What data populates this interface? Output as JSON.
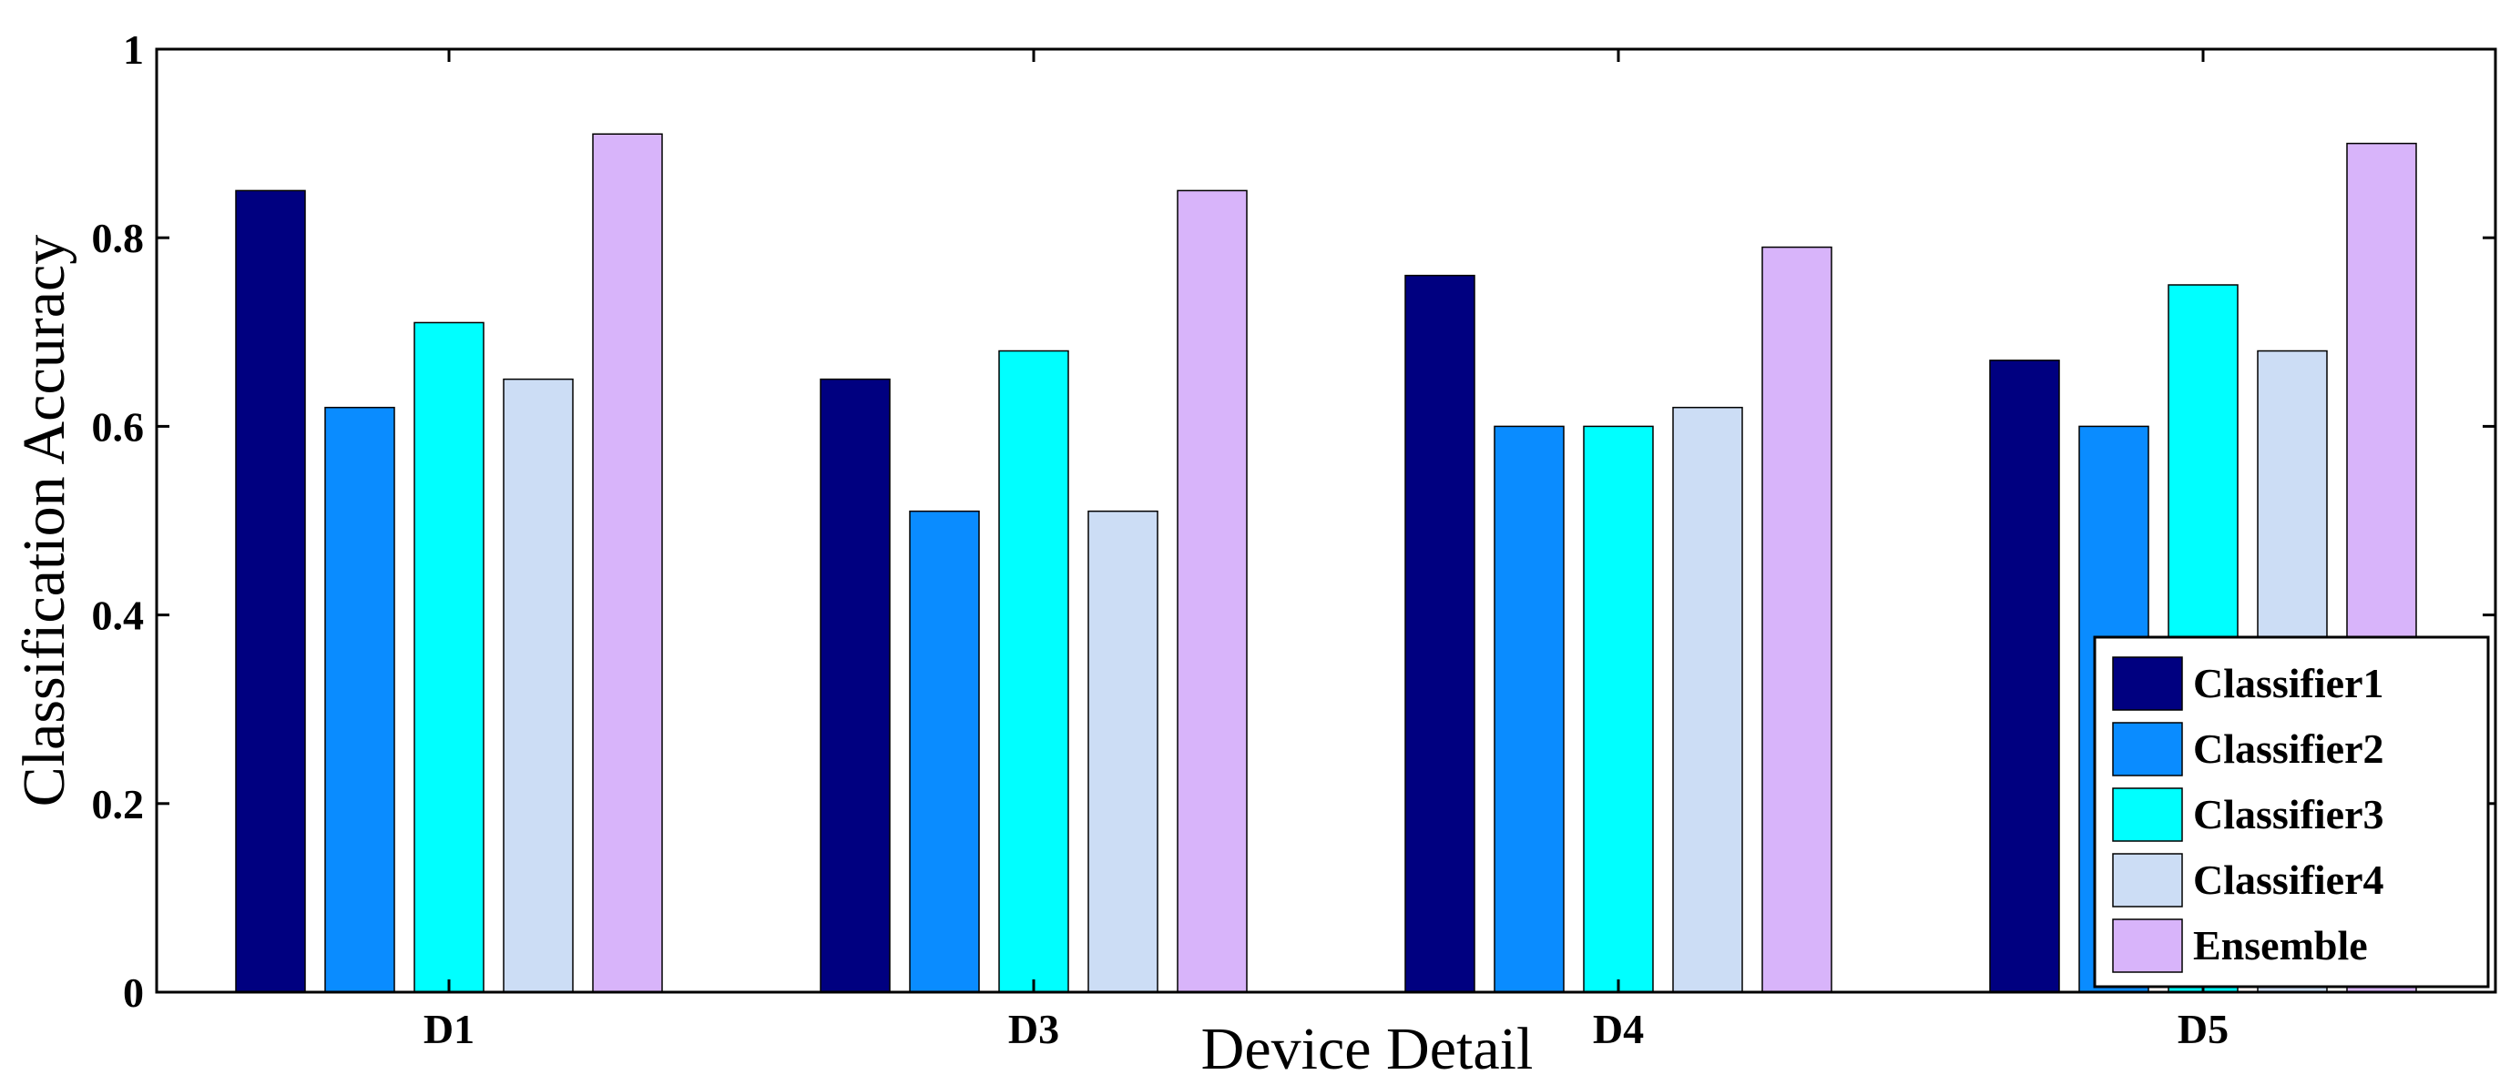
{
  "chart_data": {
    "type": "bar",
    "categories": [
      "D1",
      "D3",
      "D4",
      "D5"
    ],
    "series": [
      {
        "name": "Classifier1",
        "color": "#000080",
        "values": [
          0.85,
          0.65,
          0.76,
          0.67
        ]
      },
      {
        "name": "Classifier2",
        "color": "#0A8CFF",
        "values": [
          0.62,
          0.51,
          0.6,
          0.6
        ]
      },
      {
        "name": "Classifier3",
        "color": "#00FFFF",
        "values": [
          0.71,
          0.68,
          0.6,
          0.75
        ]
      },
      {
        "name": "Classifier4",
        "color": "#CCDDF5",
        "values": [
          0.65,
          0.51,
          0.62,
          0.68
        ]
      },
      {
        "name": "Ensemble",
        "color": "#D8B4FA",
        "values": [
          0.91,
          0.85,
          0.79,
          0.9
        ]
      }
    ],
    "xlabel": "Device Detail",
    "ylabel": "Classification Accuracy",
    "ylim": [
      0,
      1
    ],
    "yticks": [
      0,
      0.2,
      0.4,
      0.6,
      0.8,
      1
    ],
    "ytick_labels": [
      "0",
      "0.2",
      "0.4",
      "0.6",
      "0.8",
      "1"
    ],
    "grid": false,
    "legend_position": "bottom-right"
  }
}
